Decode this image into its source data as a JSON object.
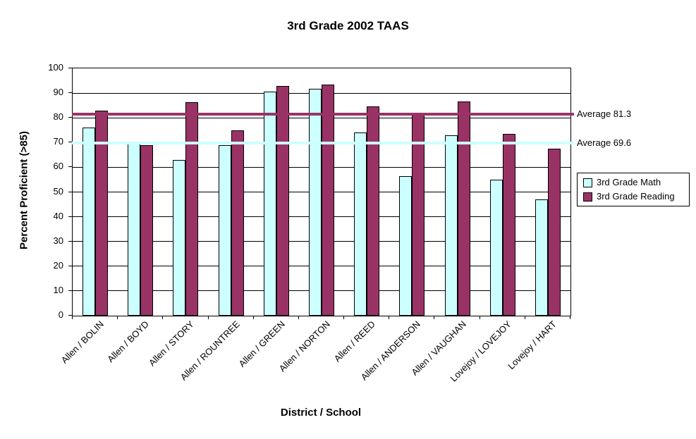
{
  "chart_data": {
    "type": "bar",
    "title": "3rd Grade 2002 TAAS",
    "xlabel": "District / School",
    "ylabel": "Percent Proficient (>85)",
    "ylim": [
      0,
      100
    ],
    "yticks": [
      0,
      10,
      20,
      30,
      40,
      50,
      60,
      70,
      80,
      90,
      100
    ],
    "grid": true,
    "legend_position": "right",
    "categories": [
      "Allen / BOLIN",
      "Allen / BOYD",
      "Allen / STORY",
      "Allen / ROUNTREE",
      "Allen / GREEN",
      "Allen / NORTON",
      "Allen / REED",
      "Allen / ANDERSON",
      "Allen / VAUGHAN",
      "Lovejoy / LOVEJOY",
      "Lovejoy / HART"
    ],
    "series": [
      {
        "name": "3rd Grade Math",
        "color": "#CCFFFF",
        "values": [
          76,
          70,
          63,
          69,
          90.5,
          91.8,
          74,
          56.4,
          73,
          55,
          47
        ]
      },
      {
        "name": "3rd Grade Reading",
        "color": "#993366",
        "values": [
          83,
          69,
          86.4,
          74.8,
          93,
          93.4,
          84.7,
          82,
          86.6,
          73.4,
          67.4
        ]
      }
    ],
    "reference_lines": [
      {
        "label": "Average 81.3",
        "value": 81.3,
        "color": "#993366"
      },
      {
        "label": "Average 69.6",
        "value": 69.6,
        "color": "#CCFFFF"
      }
    ]
  }
}
